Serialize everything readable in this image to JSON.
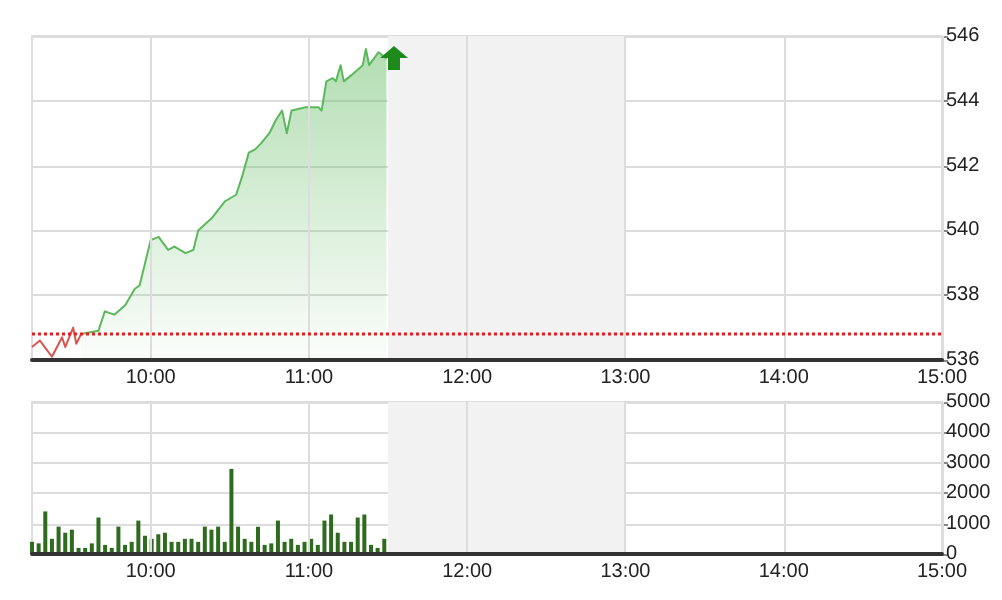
{
  "chart_data": [
    {
      "type": "area",
      "xlim": [
        9.25,
        15
      ],
      "xticks": [
        {
          "value": 10,
          "label": "10:00"
        },
        {
          "value": 11,
          "label": "11:00"
        },
        {
          "value": 12,
          "label": "12:00"
        },
        {
          "value": 13,
          "label": "13:00"
        },
        {
          "value": 14,
          "label": "14:00"
        },
        {
          "value": 15,
          "label": "15:00"
        }
      ],
      "ylim": [
        536,
        546
      ],
      "yticks": [
        536,
        538,
        540,
        542,
        544,
        546
      ],
      "grid": true,
      "marker": "none",
      "ref_lines": [
        {
          "axis": "y",
          "value": 536.8,
          "color": "#e02020",
          "line_style": "dotted"
        }
      ],
      "bands": [
        {
          "axis": "x",
          "from": 11.5,
          "to": 13,
          "color": "#f2f2f2"
        }
      ],
      "series": [
        {
          "type": "line",
          "color": "#d9534f",
          "x": [
            9.25,
            9.3,
            9.376,
            9.44,
            9.46,
            9.51,
            9.53,
            9.56
          ],
          "values": [
            536.4,
            536.6,
            536.1,
            536.7,
            536.4,
            537.0,
            536.5,
            536.8
          ]
        },
        {
          "color": "#5cb85c",
          "x": [
            9.56,
            9.67,
            9.71,
            9.77,
            9.84,
            9.9,
            9.93,
            10.0,
            10.05,
            10.11,
            10.15,
            10.22,
            10.27,
            10.3,
            10.39,
            10.47,
            10.54,
            10.58,
            10.62,
            10.66,
            10.7,
            10.75,
            10.79,
            10.83,
            10.86,
            10.89,
            10.98,
            11.06,
            11.08,
            11.11,
            11.15,
            11.17,
            11.2,
            11.22,
            11.27,
            11.34,
            11.36,
            11.38,
            11.44,
            11.49
          ],
          "values": [
            536.8,
            536.9,
            537.5,
            537.4,
            537.7,
            538.2,
            538.3,
            539.7,
            539.8,
            539.4,
            539.5,
            539.3,
            539.4,
            540.0,
            540.4,
            540.9,
            541.1,
            541.7,
            542.4,
            542.5,
            542.7,
            543.0,
            543.4,
            543.7,
            543.0,
            543.7,
            543.8,
            543.8,
            543.7,
            544.6,
            544.7,
            544.6,
            545.1,
            544.6,
            544.8,
            545.1,
            545.6,
            545.1,
            545.5,
            545.3
          ]
        }
      ]
    },
    {
      "type": "bar",
      "xlim": [
        9.25,
        15
      ],
      "xticks": [
        {
          "value": 10,
          "label": "10:00"
        },
        {
          "value": 11,
          "label": "11:00"
        },
        {
          "value": 12,
          "label": "12:00"
        },
        {
          "value": 13,
          "label": "13:00"
        },
        {
          "value": 14,
          "label": "14:00"
        },
        {
          "value": 15,
          "label": "15:00"
        }
      ],
      "ylim": [
        0,
        5000
      ],
      "yticks": [
        0,
        1000,
        2000,
        3000,
        4000,
        5000
      ],
      "grid": true,
      "bands": [
        {
          "axis": "x",
          "from": 11.5,
          "to": 13,
          "color": "#f2f2f2"
        }
      ],
      "series": [
        {
          "color": "#2e6b1f",
          "x": [
            9.25,
            9.292,
            9.334,
            9.376,
            9.418,
            9.46,
            9.502,
            9.544,
            9.586,
            9.628,
            9.67,
            9.712,
            9.754,
            9.796,
            9.838,
            9.88,
            9.922,
            9.964,
            10.006,
            10.048,
            10.09,
            10.132,
            10.174,
            10.216,
            10.258,
            10.3,
            10.342,
            10.384,
            10.426,
            10.468,
            10.51,
            10.552,
            10.594,
            10.636,
            10.678,
            10.72,
            10.762,
            10.804,
            10.846,
            10.888,
            10.93,
            10.972,
            11.014,
            11.056,
            11.098,
            11.14,
            11.182,
            11.224,
            11.266,
            11.308,
            11.35,
            11.392,
            11.434,
            11.476
          ],
          "values": [
            400,
            350,
            1400,
            500,
            900,
            700,
            800,
            200,
            200,
            350,
            1200,
            300,
            200,
            900,
            300,
            400,
            1100,
            600,
            500,
            650,
            700,
            400,
            400,
            500,
            500,
            400,
            900,
            800,
            900,
            400,
            2800,
            900,
            500,
            400,
            900,
            300,
            350,
            1100,
            400,
            500,
            300,
            400,
            500,
            300,
            1100,
            1300,
            700,
            400,
            400,
            1200,
            1300,
            300,
            200,
            500
          ]
        }
      ]
    }
  ]
}
